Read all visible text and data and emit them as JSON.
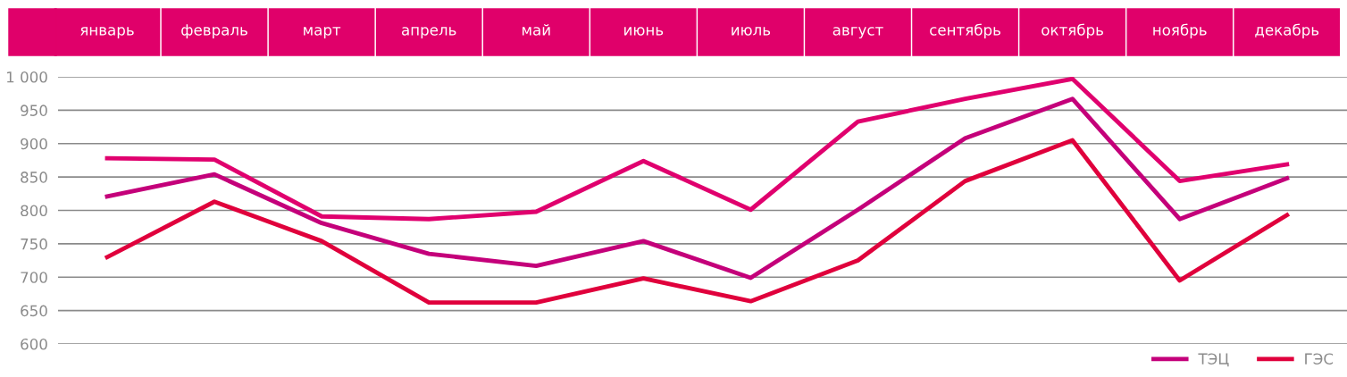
{
  "chart_data": {
    "type": "line",
    "categories": [
      "январь",
      "февраль",
      "март",
      "апрель",
      "май",
      "июнь",
      "июль",
      "август",
      "сентябрь",
      "октябрь",
      "ноябрь",
      "декабрь"
    ],
    "series": [
      {
        "color": "#e0006e",
        "values": [
          878,
          876,
          791,
          787,
          798,
          874,
          801,
          933,
          967,
          997,
          844,
          869
        ]
      },
      {
        "name": "ТЭЦ",
        "color": "#c4007a",
        "values": [
          821,
          854,
          781,
          735,
          717,
          754,
          699,
          801,
          908,
          967,
          787,
          848
        ]
      },
      {
        "name": "ГЭС",
        "color": "#e0003c",
        "values": [
          730,
          813,
          754,
          662,
          662,
          698,
          664,
          725,
          844,
          905,
          695,
          793
        ]
      }
    ],
    "ylim": [
      600,
      1000
    ],
    "yticks": [
      600,
      650,
      700,
      750,
      800,
      850,
      900,
      950,
      {
        "value": 1000,
        "label": "1 000"
      }
    ],
    "grid": "y",
    "legend": "bottom right",
    "marker": "none",
    "line_style": "solid"
  }
}
